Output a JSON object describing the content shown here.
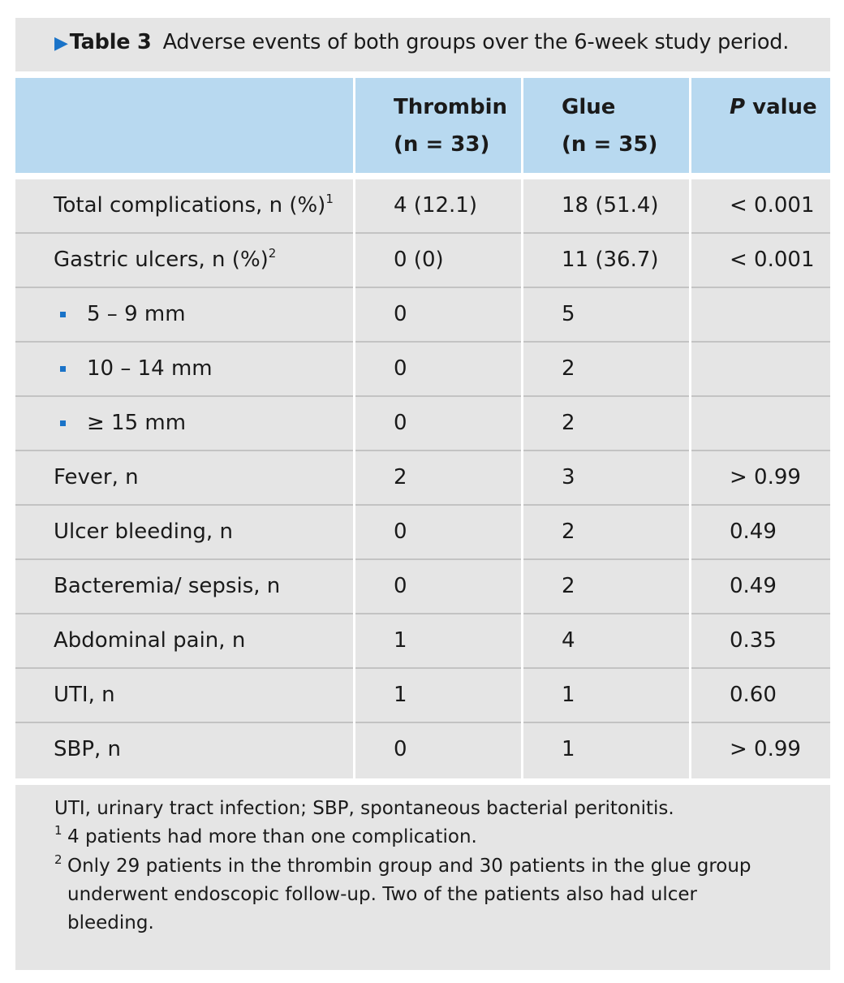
{
  "title": {
    "label": "Table 3",
    "caption": "Adverse events of both groups over the 6-week study period."
  },
  "columns": {
    "thrombin_line1": "Thrombin",
    "thrombin_line2": "(n = 33)",
    "glue_line1": "Glue",
    "glue_line2": "(n = 35)",
    "p_italic": "P",
    "p_rest": " value"
  },
  "rows": [
    {
      "label": "Total complications, n (%)",
      "sup": "1",
      "thrombin": "4 (12.1)",
      "glue": "18 (51.4)",
      "p": "< 0.001"
    },
    {
      "label": "Gastric ulcers, n (%)",
      "sup": "2",
      "thrombin": "0 (0)",
      "glue": "11 (36.7)",
      "p": "< 0.001"
    },
    {
      "label": "5 – 9 mm",
      "sub": true,
      "thrombin": "0",
      "glue": "5",
      "p": ""
    },
    {
      "label": "10 – 14 mm",
      "sub": true,
      "thrombin": "0",
      "glue": "2",
      "p": ""
    },
    {
      "label": "≥ 15 mm",
      "sub": true,
      "thrombin": "0",
      "glue": "2",
      "p": ""
    },
    {
      "label": "Fever, n",
      "thrombin": "2",
      "glue": "3",
      "p": "> 0.99"
    },
    {
      "label": "Ulcer bleeding, n",
      "thrombin": "0",
      "glue": "2",
      "p": "0.49"
    },
    {
      "label": "Bacteremia/ sepsis, n",
      "thrombin": "0",
      "glue": "2",
      "p": "0.49"
    },
    {
      "label": "Abdominal pain, n",
      "thrombin": "1",
      "glue": "4",
      "p": "0.35"
    },
    {
      "label": "UTI, n",
      "thrombin": "1",
      "glue": "1",
      "p": "0.60"
    },
    {
      "label": "SBP, n",
      "thrombin": "0",
      "glue": "1",
      "p": "> 0.99"
    }
  ],
  "footnotes": {
    "abbrev": "UTI, urinary tract infection; SBP, spontaneous bacterial peritonitis.",
    "n1_num": "1",
    "n1_text": "4 patients had more than one complication.",
    "n2_num": "2",
    "n2_line1": "Only 29 patients in the thrombin group and 30 patients in the glue group",
    "n2_line2": "underwent endoscopic follow-up. Two of the patients also had ulcer",
    "n2_line3": "bleeding."
  }
}
